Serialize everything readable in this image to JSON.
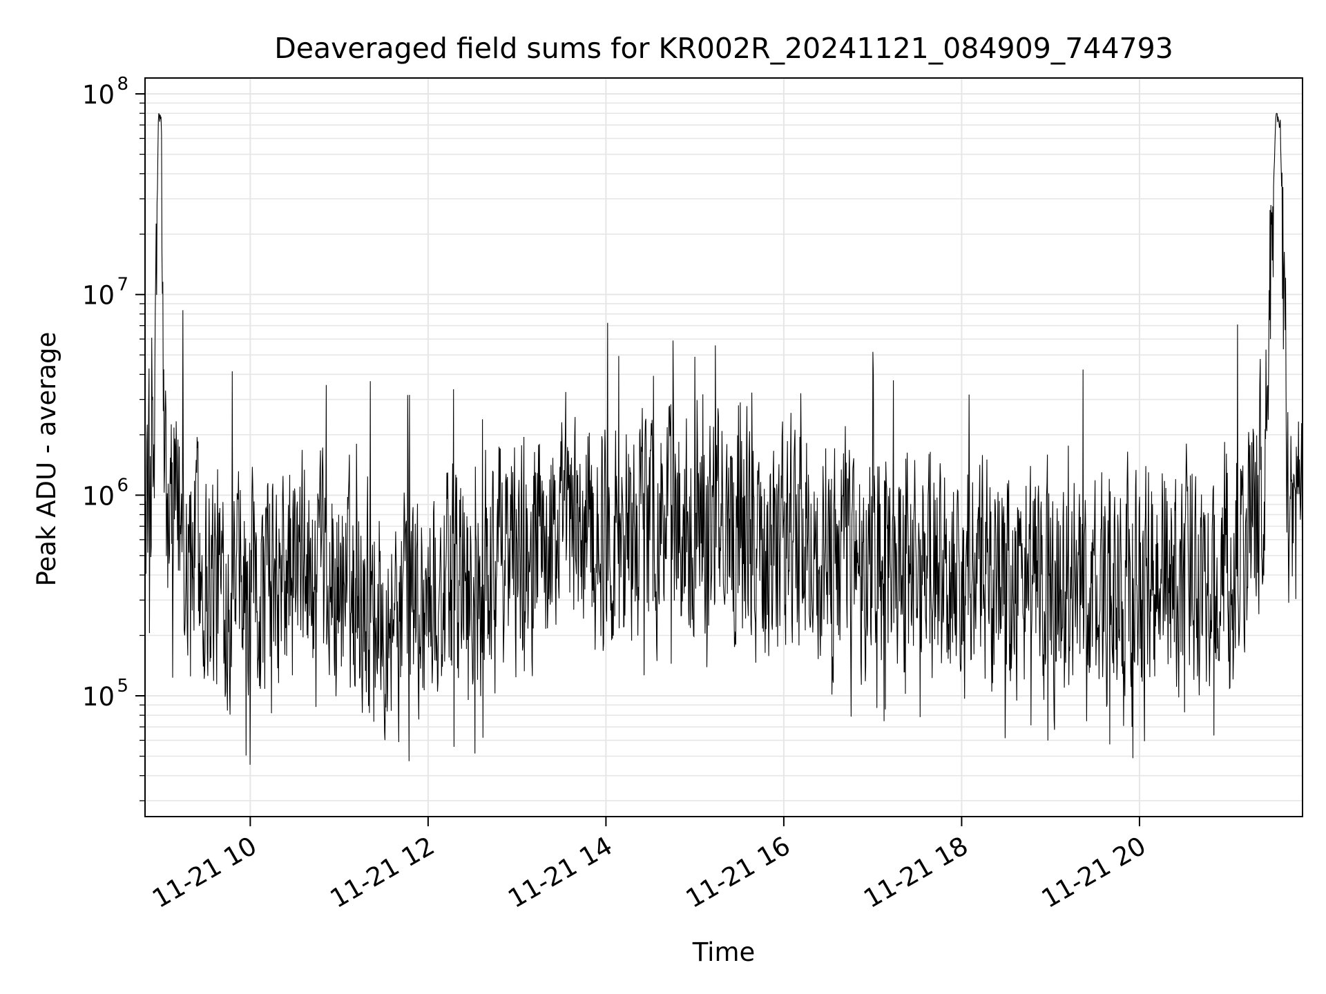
{
  "chart_data": {
    "type": "line",
    "title": "Deaveraged field sums for KR002R_20241121_084909_744793",
    "xlabel": "Time",
    "ylabel": "Peak ADU - average",
    "y_scale": "log",
    "grid": true,
    "line_color": "#000000",
    "grid_color": "#e6e6e6",
    "xlim": [
      "11-21 08:49",
      "11-21 21:50"
    ],
    "ylim": [
      25000,
      120000000
    ],
    "x_ticks": [
      {
        "label": "11-21 10",
        "value": "11-21 10:00"
      },
      {
        "label": "11-21 12",
        "value": "11-21 12:00"
      },
      {
        "label": "11-21 14",
        "value": "11-21 14:00"
      },
      {
        "label": "11-21 16",
        "value": "11-21 16:00"
      },
      {
        "label": "11-21 18",
        "value": "11-21 18:00"
      },
      {
        "label": "11-21 20",
        "value": "11-21 20:00"
      }
    ],
    "y_ticks": [
      {
        "base": "10",
        "exp": "5",
        "value": 100000
      },
      {
        "base": "10",
        "exp": "6",
        "value": 1000000
      },
      {
        "base": "10",
        "exp": "7",
        "value": 10000000
      },
      {
        "base": "10",
        "exp": "8",
        "value": 100000000
      }
    ],
    "series": [
      {
        "x": [
          "08:49",
          "08:55",
          "08:58",
          "09:00",
          "09:02",
          "09:05",
          "09:15",
          "09:30",
          "09:45",
          "10:00",
          "10:15",
          "10:30",
          "10:45",
          "11:00",
          "11:15",
          "11:30",
          "11:45",
          "12:00",
          "12:15",
          "12:30",
          "12:45",
          "13:00",
          "13:30",
          "14:00",
          "14:30",
          "15:00",
          "15:30",
          "16:00",
          "16:30",
          "17:00",
          "17:30",
          "18:00",
          "18:30",
          "19:00",
          "19:30",
          "20:00",
          "20:30",
          "21:00",
          "21:15",
          "21:25",
          "21:32",
          "21:35",
          "21:40",
          "21:45",
          "21:50"
        ],
        "y": [
          1000000,
          1200000,
          75000000,
          78000000,
          900000,
          800000,
          700000,
          400000,
          350000,
          300000,
          350000,
          400000,
          350000,
          350000,
          320000,
          300000,
          320000,
          300000,
          350000,
          400000,
          450000,
          550000,
          600000,
          650000,
          700000,
          750000,
          700000,
          600000,
          550000,
          500000,
          450000,
          400000,
          380000,
          350000,
          350000,
          360000,
          400000,
          500000,
          700000,
          1500000,
          80000000,
          70000000,
          1000000,
          900000,
          800000
        ]
      }
    ]
  }
}
